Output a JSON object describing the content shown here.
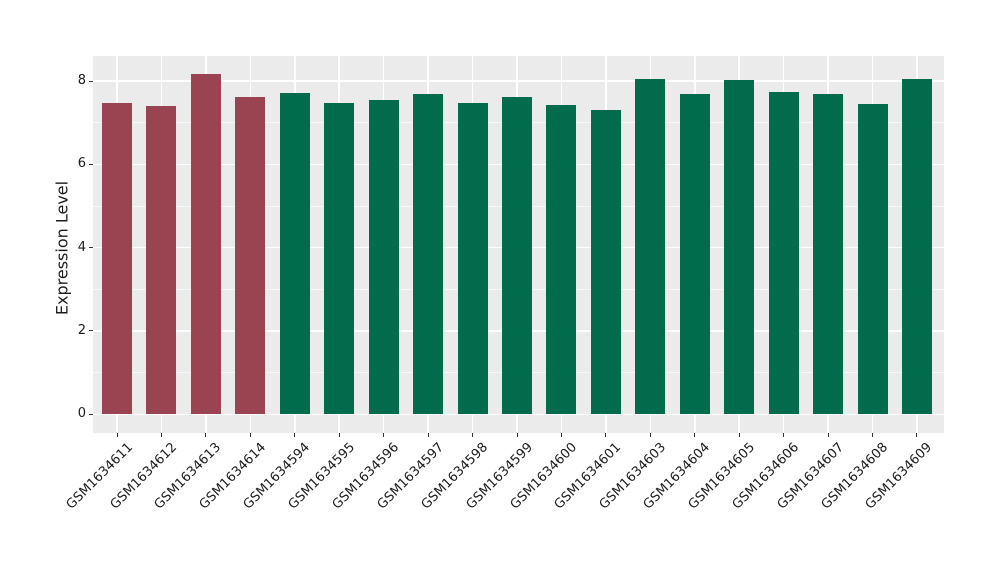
{
  "figure": {
    "background_color": "#ffffff",
    "panel_background_color": "#ebebeb",
    "grid_major_color": "#ffffff",
    "grid_minor_color": "rgba(255,255,255,0.65)",
    "tick_mark_color": "#333333",
    "text_color": "#1c1c1c"
  },
  "chart_data": {
    "type": "bar",
    "title": "",
    "xlabel": "",
    "ylabel": "Expression Level",
    "categories": [
      "GSM1634611",
      "GSM1634612",
      "GSM1634613",
      "GSM1634614",
      "GSM1634594",
      "GSM1634595",
      "GSM1634596",
      "GSM1634597",
      "GSM1634598",
      "GSM1634599",
      "GSM1634600",
      "GSM1634601",
      "GSM1634603",
      "GSM1634604",
      "GSM1634605",
      "GSM1634606",
      "GSM1634607",
      "GSM1634608",
      "GSM1634609"
    ],
    "values": [
      7.47,
      7.41,
      8.18,
      7.61,
      7.72,
      7.48,
      7.55,
      7.68,
      7.48,
      7.61,
      7.42,
      7.31,
      8.06,
      7.68,
      8.03,
      7.74,
      7.69,
      7.44,
      8.06
    ],
    "bar_group": [
      "group1",
      "group1",
      "group1",
      "group1",
      "group2",
      "group2",
      "group2",
      "group2",
      "group2",
      "group2",
      "group2",
      "group2",
      "group2",
      "group2",
      "group2",
      "group2",
      "group2",
      "group2",
      "group2"
    ],
    "series_colors": {
      "group1": "#9a4452",
      "group2": "#016b4b"
    },
    "yticks": [
      0,
      2,
      4,
      6,
      8
    ],
    "ytick_labels": [
      "0",
      "2",
      "4",
      "6",
      "8"
    ],
    "ylim": [
      -0.45,
      8.6
    ],
    "x_label_rotation_deg": 45,
    "grid": "white major gridlines (x at category centers, y at even ticks) + thinner white minor y gridlines at odd values, on gray panel",
    "legend": "none"
  }
}
